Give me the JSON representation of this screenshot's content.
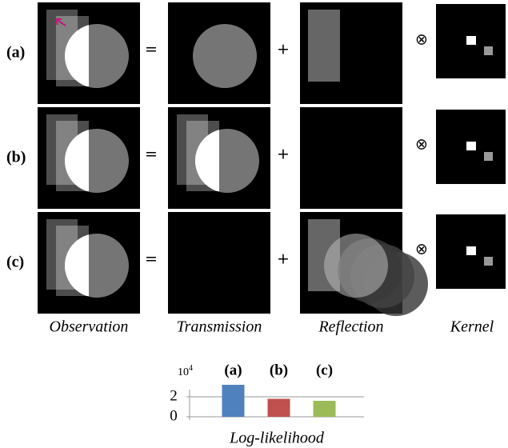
{
  "rows": [
    {
      "label": "(a)"
    },
    {
      "label": "(b)"
    },
    {
      "label": "(c)"
    }
  ],
  "operators": {
    "equals": "=",
    "plus": "+",
    "convolve": "⊗"
  },
  "column_labels": [
    "Observation",
    "Transmission",
    "Reflection",
    "Kernel"
  ],
  "chart_data": {
    "type": "bar",
    "xlabel": "Log-likelihood",
    "y_scale": {
      "base": "10",
      "exponent": "4"
    },
    "categories": [
      "(a)",
      "(b)",
      "(c)"
    ],
    "values": [
      3.2,
      1.8,
      1.6
    ],
    "colors": [
      "#4f81bd",
      "#c0504d",
      "#9bbb59"
    ],
    "ylim": [
      0,
      3.2
    ],
    "yticks": [
      0,
      2
    ],
    "grid": true
  }
}
